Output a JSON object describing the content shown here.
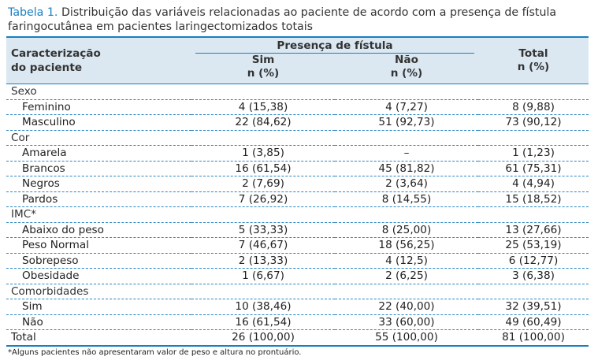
{
  "caption": {
    "label": "Tabela 1.",
    "text": " Distribuição das variáveis relacionadas ao paciente de acordo com a presença de fístula faringocutânea em pacientes laringectomizados totais"
  },
  "header": {
    "col0_line1": "Caracterização",
    "col0_line2": "do paciente",
    "group": "Presença de fístula",
    "sim_line1": "Sim",
    "sim_line2": "n (%)",
    "nao_line1": "Não",
    "nao_line2": "n (%)",
    "total_line1": "Total",
    "total_line2": "n (%)"
  },
  "rows": [
    {
      "type": "cat",
      "label": "Sexo",
      "sim": "",
      "nao": "",
      "total": ""
    },
    {
      "type": "item",
      "label": "Feminino",
      "sim": "4 (15,38)",
      "nao": "4 (7,27)",
      "total": "8 (9,88)"
    },
    {
      "type": "item",
      "label": "Masculino",
      "sim": "22 (84,62)",
      "nao": "51 (92,73)",
      "total": "73 (90,12)"
    },
    {
      "type": "cat",
      "label": "Cor",
      "sim": "",
      "nao": "",
      "total": ""
    },
    {
      "type": "item",
      "label": "Amarela",
      "sim": "1 (3,85)",
      "nao": "–",
      "total": "1 (1,23)"
    },
    {
      "type": "item",
      "label": "Brancos",
      "sim": "16 (61,54)",
      "nao": "45 (81,82)",
      "total": "61 (75,31)"
    },
    {
      "type": "item",
      "label": "Negros",
      "sim": "2 (7,69)",
      "nao": "2 (3,64)",
      "total": "4 (4,94)"
    },
    {
      "type": "item",
      "label": "Pardos",
      "sim": "7 (26,92)",
      "nao": "8 (14,55)",
      "total": "15 (18,52)"
    },
    {
      "type": "cat",
      "label": "IMC*",
      "sim": "",
      "nao": "",
      "total": ""
    },
    {
      "type": "item",
      "label": "Abaixo do peso",
      "sim": "5 (33,33)",
      "nao": "8 (25,00)",
      "total": "13 (27,66)"
    },
    {
      "type": "item",
      "label": "Peso Normal",
      "sim": "7 (46,67)",
      "nao": "18 (56,25)",
      "total": "25 (53,19)"
    },
    {
      "type": "item",
      "label": "Sobrepeso",
      "sim": "2 (13,33)",
      "nao": "4 (12,5)",
      "total": "6 (12,77)"
    },
    {
      "type": "item",
      "label": "Obesidade",
      "sim": "1 (6,67)",
      "nao": "2 (6,25)",
      "total": "3 (6,38)"
    },
    {
      "type": "cat",
      "label": "Comorbidades",
      "sim": "",
      "nao": "",
      "total": ""
    },
    {
      "type": "item",
      "label": "Sim",
      "sim": "10 (38,46)",
      "nao": "22 (40,00)",
      "total": "32 (39,51)"
    },
    {
      "type": "item",
      "label": "Não",
      "sim": "16 (61,54)",
      "nao": "33 (60,00)",
      "total": "49 (60,49)"
    },
    {
      "type": "total",
      "label": "Total",
      "sim": "26 (100,00)",
      "nao": "55 (100,00)",
      "total": "81 (100,00)"
    }
  ],
  "footnote": "*Alguns pacientes não apresentaram valor de peso e altura no prontuário.",
  "colors": {
    "accent": "#1a7fc1",
    "header_bg": "#dbe8f2"
  }
}
